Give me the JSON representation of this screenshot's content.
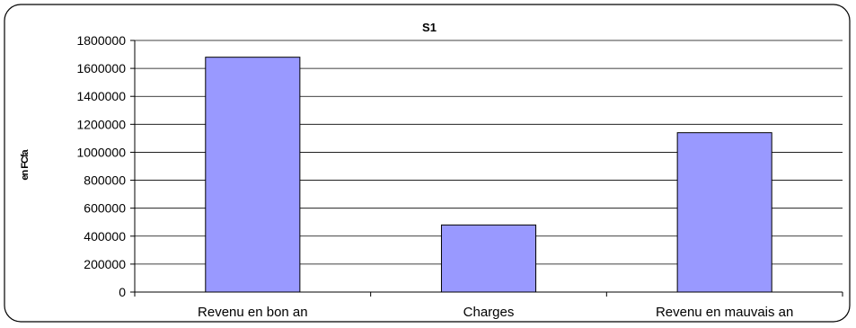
{
  "chart_data": {
    "type": "bar",
    "title": "S1",
    "ylabel": "en FCfa",
    "xlabel": "",
    "categories": [
      "Revenu en bon an",
      "Charges",
      "Revenu en mauvais an"
    ],
    "values": [
      1680000,
      480000,
      1140000
    ],
    "ylim": [
      0,
      1800000
    ],
    "yticks": [
      "0",
      "200000",
      "400000",
      "600000",
      "800000",
      "1000000",
      "1200000",
      "1400000",
      "1600000",
      "1800000"
    ],
    "grid": true,
    "legend": "none",
    "colors": {
      "bar_fill": "#9999ff",
      "bar_stroke": "#000000",
      "grid": "#000000",
      "frame": "#000000"
    }
  }
}
